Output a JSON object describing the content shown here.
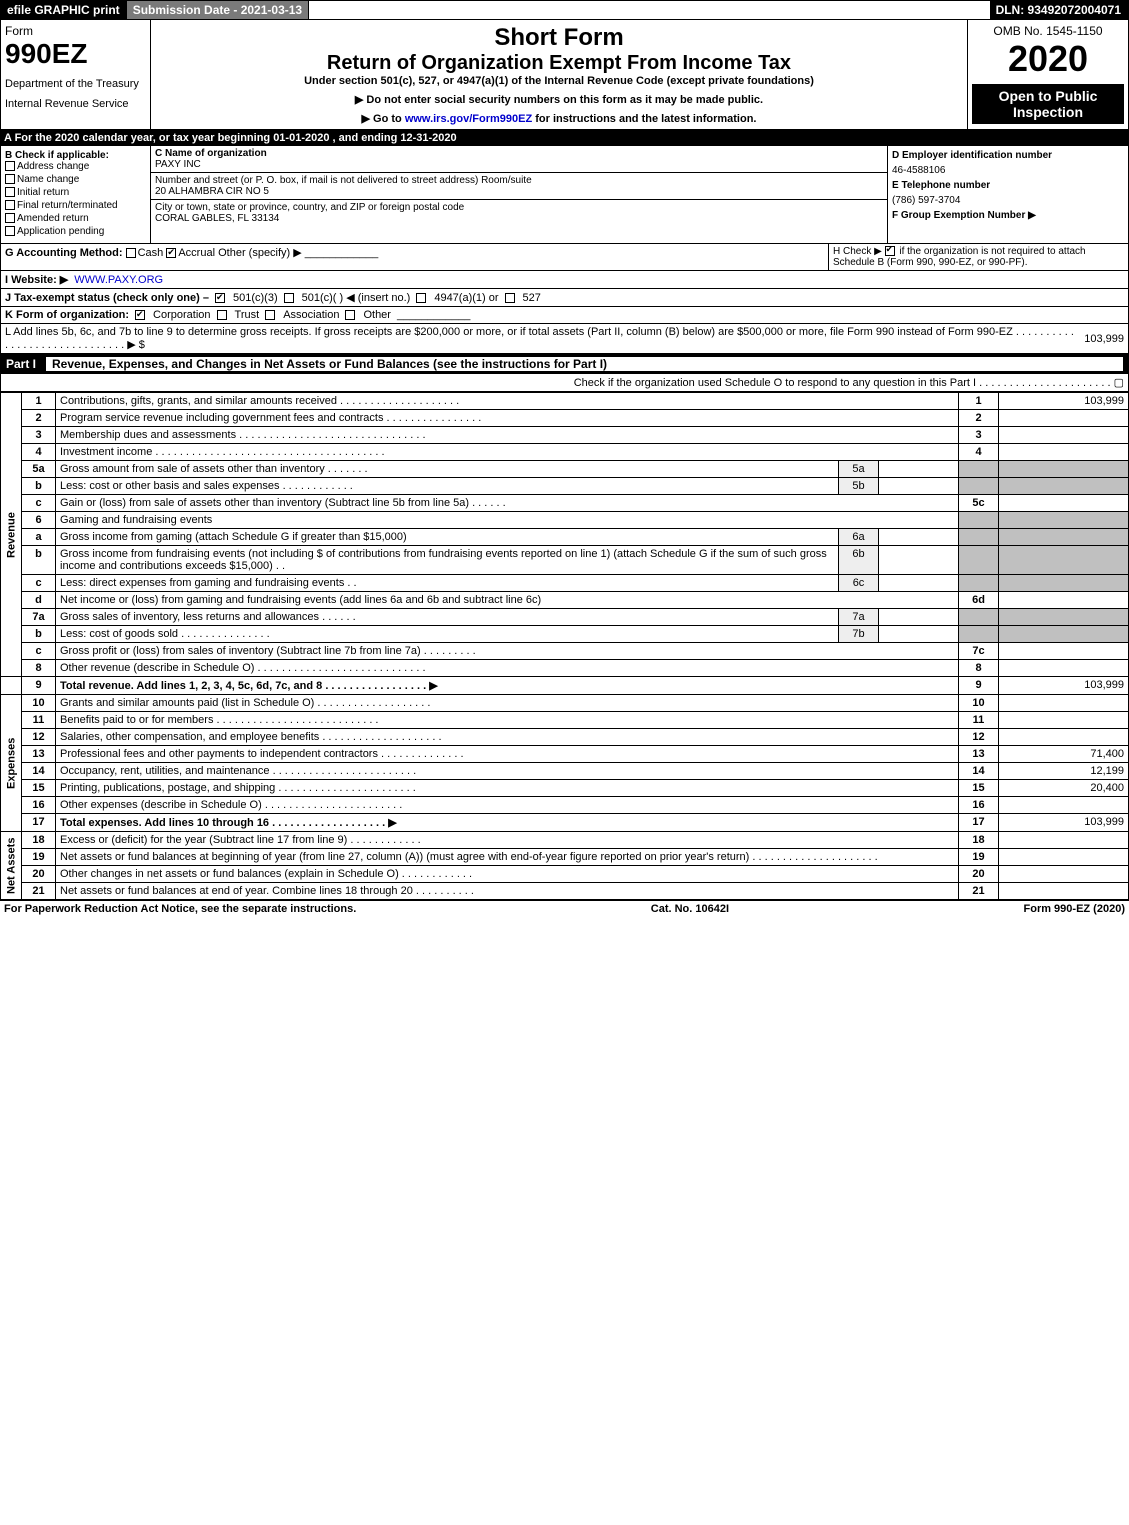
{
  "colors": {
    "black": "#000000",
    "white": "#ffffff",
    "gray_header": "#7a7a7a",
    "shade": "#c0c0c0",
    "link": "#0000cc"
  },
  "topbar": {
    "efile": "efile GRAPHIC print",
    "subdate_label": "Submission Date - 2021-03-13",
    "dln": "DLN: 93492072004071"
  },
  "header": {
    "form_word": "Form",
    "form_no": "990EZ",
    "dept1": "Department of the Treasury",
    "dept2": "Internal Revenue Service",
    "short_form": "Short Form",
    "title2": "Return of Organization Exempt From Income Tax",
    "subtitle": "Under section 501(c), 527, or 4947(a)(1) of the Internal Revenue Code (except private foundations)",
    "instr_ssn": "▶ Do not enter social security numbers on this form as it may be made public.",
    "instr_go_pre": "▶ Go to ",
    "instr_go_link": "www.irs.gov/Form990EZ",
    "instr_go_post": " for instructions and the latest information.",
    "omb": "OMB No. 1545-1150",
    "year": "2020",
    "open": "Open to Public Inspection"
  },
  "row_a": "A For the 2020 calendar year, or tax year beginning 01-01-2020 , and ending 12-31-2020",
  "col_b": {
    "title": "B Check if applicable:",
    "items": [
      "Address change",
      "Name change",
      "Initial return",
      "Final return/terminated",
      "Amended return",
      "Application pending"
    ]
  },
  "col_c": {
    "c_label": "C Name of organization",
    "c_name": "PAXY INC",
    "addr_label": "Number and street (or P. O. box, if mail is not delivered to street address)         Room/suite",
    "addr": "20 ALHAMBRA CIR NO 5",
    "city_label": "City or town, state or province, country, and ZIP or foreign postal code",
    "city": "CORAL GABLES, FL  33134"
  },
  "col_d": {
    "d_label": "D Employer identification number",
    "ein": "46-4588106",
    "e_label": "E Telephone number",
    "phone": "(786) 597-3704",
    "f_label": "F Group Exemption Number  ▶"
  },
  "row_g": {
    "label": "G Accounting Method:",
    "cash": "Cash",
    "accrual": "Accrual",
    "other": "Other (specify) ▶"
  },
  "row_h": {
    "pre": "H  Check ▶ ",
    "post": " if the organization is not required to attach Schedule B (Form 990, 990-EZ, or 990-PF)."
  },
  "row_i": {
    "label": "I Website: ▶",
    "site": "WWW.PAXY.ORG"
  },
  "row_j": {
    "label": "J Tax-exempt status (check only one) – ",
    "o1": "501(c)(3)",
    "o2": "501(c)(  ) ◀ (insert no.)",
    "o3": "4947(a)(1) or",
    "o4": "527"
  },
  "row_k": {
    "label": "K Form of organization:",
    "o1": "Corporation",
    "o2": "Trust",
    "o3": "Association",
    "o4": "Other"
  },
  "row_l": {
    "text": "L Add lines 5b, 6c, and 7b to line 9 to determine gross receipts. If gross receipts are $200,000 or more, or if total assets (Part II, column (B) below) are $500,000 or more, file Form 990 instead of Form 990-EZ . . . . . . . . . . . . . . . . . . . . . . . . . . . . . . ▶ $",
    "amount": "103,999"
  },
  "part1": {
    "label": "Part I",
    "title": "Revenue, Expenses, and Changes in Net Assets or Fund Balances (see the instructions for Part I)",
    "check": "Check if the organization used Schedule O to respond to any question in this Part I . . . . . . . . . . . . . . . . . . . . . . ▢"
  },
  "sections": {
    "revenue": "Revenue",
    "expenses": "Expenses",
    "netassets": "Net Assets"
  },
  "lines": {
    "l1": {
      "n": "1",
      "d": "Contributions, gifts, grants, and similar amounts received . . . . . . . . . . . . . . . . . . . .",
      "rn": "1",
      "v": "103,999"
    },
    "l2": {
      "n": "2",
      "d": "Program service revenue including government fees and contracts . . . . . . . . . . . . . . . .",
      "rn": "2",
      "v": ""
    },
    "l3": {
      "n": "3",
      "d": "Membership dues and assessments . . . . . . . . . . . . . . . . . . . . . . . . . . . . . . .",
      "rn": "3",
      "v": ""
    },
    "l4": {
      "n": "4",
      "d": "Investment income . . . . . . . . . . . . . . . . . . . . . . . . . . . . . . . . . . . . . .",
      "rn": "4",
      "v": ""
    },
    "l5a": {
      "n": "5a",
      "d": "Gross amount from sale of assets other than inventory . . . . . . .",
      "sub": "5a"
    },
    "l5b": {
      "n": "b",
      "d": "Less: cost or other basis and sales expenses . . . . . . . . . . . .",
      "sub": "5b"
    },
    "l5c": {
      "n": "c",
      "d": "Gain or (loss) from sale of assets other than inventory (Subtract line 5b from line 5a) . . . . . .",
      "rn": "5c",
      "v": ""
    },
    "l6": {
      "n": "6",
      "d": "Gaming and fundraising events"
    },
    "l6a": {
      "n": "a",
      "d": "Gross income from gaming (attach Schedule G if greater than $15,000)",
      "sub": "6a"
    },
    "l6b": {
      "n": "b",
      "d": "Gross income from fundraising events (not including $                    of contributions from fundraising events reported on line 1) (attach Schedule G if the sum of such gross income and contributions exceeds $15,000)    . .",
      "sub": "6b"
    },
    "l6c": {
      "n": "c",
      "d": "Less: direct expenses from gaming and fundraising events     . .",
      "sub": "6c"
    },
    "l6d": {
      "n": "d",
      "d": "Net income or (loss) from gaming and fundraising events (add lines 6a and 6b and subtract line 6c)",
      "rn": "6d",
      "v": ""
    },
    "l7a": {
      "n": "7a",
      "d": "Gross sales of inventory, less returns and allowances . . . . . .",
      "sub": "7a"
    },
    "l7b": {
      "n": "b",
      "d": "Less: cost of goods sold       . . . . . . . . . . . . . . .",
      "sub": "7b"
    },
    "l7c": {
      "n": "c",
      "d": "Gross profit or (loss) from sales of inventory (Subtract line 7b from line 7a) . . . . . . . . .",
      "rn": "7c",
      "v": ""
    },
    "l8": {
      "n": "8",
      "d": "Other revenue (describe in Schedule O) . . . . . . . . . . . . . . . . . . . . . . . . . . . .",
      "rn": "8",
      "v": ""
    },
    "l9": {
      "n": "9",
      "d": "Total revenue. Add lines 1, 2, 3, 4, 5c, 6d, 7c, and 8  . . . . . . . . . . . . . . . . .   ▶",
      "rn": "9",
      "v": "103,999"
    },
    "l10": {
      "n": "10",
      "d": "Grants and similar amounts paid (list in Schedule O) . . . . . . . . . . . . . . . . . . .",
      "rn": "10",
      "v": ""
    },
    "l11": {
      "n": "11",
      "d": "Benefits paid to or for members     . . . . . . . . . . . . . . . . . . . . . . . . . . .",
      "rn": "11",
      "v": ""
    },
    "l12": {
      "n": "12",
      "d": "Salaries, other compensation, and employee benefits . . . . . . . . . . . . . . . . . . . .",
      "rn": "12",
      "v": ""
    },
    "l13": {
      "n": "13",
      "d": "Professional fees and other payments to independent contractors . . . . . . . . . . . . . .",
      "rn": "13",
      "v": "71,400"
    },
    "l14": {
      "n": "14",
      "d": "Occupancy, rent, utilities, and maintenance . . . . . . . . . . . . . . . . . . . . . . . .",
      "rn": "14",
      "v": "12,199"
    },
    "l15": {
      "n": "15",
      "d": "Printing, publications, postage, and shipping . . . . . . . . . . . . . . . . . . . . . . .",
      "rn": "15",
      "v": "20,400"
    },
    "l16": {
      "n": "16",
      "d": "Other expenses (describe in Schedule O)    . . . . . . . . . . . . . . . . . . . . . . .",
      "rn": "16",
      "v": ""
    },
    "l17": {
      "n": "17",
      "d": "Total expenses. Add lines 10 through 16     . . . . . . . . . . . . . . . . . . .   ▶",
      "rn": "17",
      "v": "103,999"
    },
    "l18": {
      "n": "18",
      "d": "Excess or (deficit) for the year (Subtract line 17 from line 9)       . . . . . . . . . . . .",
      "rn": "18",
      "v": ""
    },
    "l19": {
      "n": "19",
      "d": "Net assets or fund balances at beginning of year (from line 27, column (A)) (must agree with end-of-year figure reported on prior year's return) . . . . . . . . . . . . . . . . . . . . .",
      "rn": "19",
      "v": ""
    },
    "l20": {
      "n": "20",
      "d": "Other changes in net assets or fund balances (explain in Schedule O) . . . . . . . . . . . .",
      "rn": "20",
      "v": ""
    },
    "l21": {
      "n": "21",
      "d": "Net assets or fund balances at end of year. Combine lines 18 through 20 . . . . . . . . . .",
      "rn": "21",
      "v": ""
    }
  },
  "footer": {
    "left": "For Paperwork Reduction Act Notice, see the separate instructions.",
    "mid": "Cat. No. 10642I",
    "right": "Form 990-EZ (2020)"
  }
}
